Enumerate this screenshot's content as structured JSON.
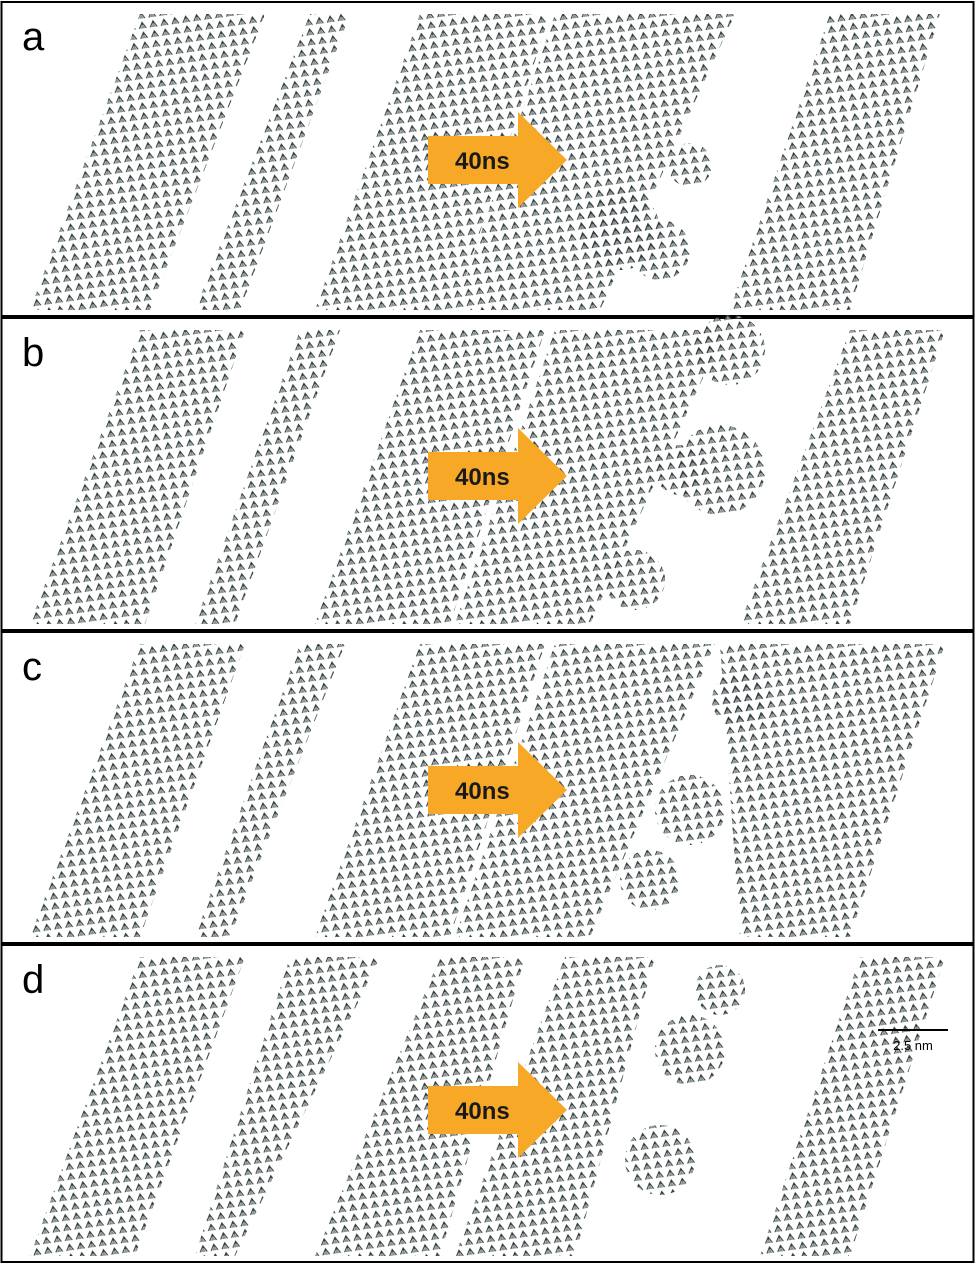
{
  "panels": [
    {
      "label": "a",
      "arrow_label": "40ns"
    },
    {
      "label": "b",
      "arrow_label": "40ns"
    },
    {
      "label": "c",
      "arrow_label": "40ns"
    },
    {
      "label": "d",
      "arrow_label": "40ns"
    }
  ],
  "scale_bar": {
    "label": "2.5 nm"
  }
}
